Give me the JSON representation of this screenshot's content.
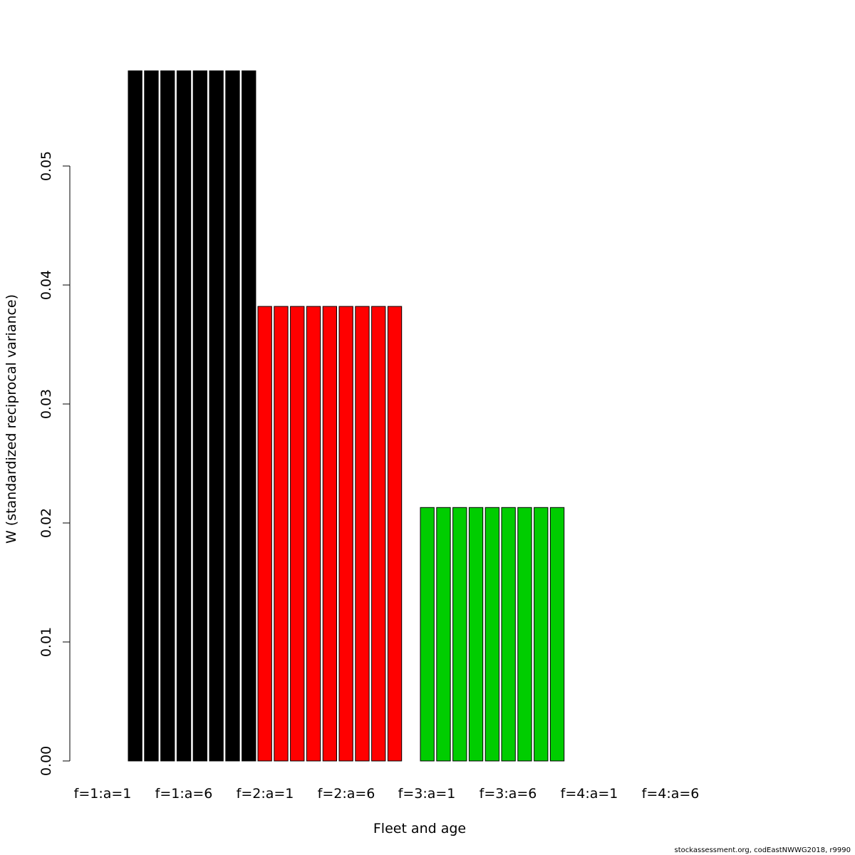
{
  "chart_data": {
    "type": "bar",
    "title": "",
    "xlabel": "Fleet and age",
    "ylabel": "W (standardized reciprocal variance)",
    "ylim": [
      0,
      0.058
    ],
    "yticks": [
      "0.00",
      "0.01",
      "0.02",
      "0.03",
      "0.04",
      "0.05"
    ],
    "x_tick_labels": [
      "f=1:a=1",
      "f=1:a=6",
      "f=2:a=1",
      "f=2:a=6",
      "f=3:a=1",
      "f=3:a=6",
      "f=4:a=1",
      "f=4:a=6"
    ],
    "grid": false,
    "legend": "none",
    "groups": [
      {
        "fleet": 1,
        "color": "#000000",
        "values": [
          0.058,
          0.058,
          0.058,
          0.058,
          0.058,
          0.058,
          0.058,
          0.058
        ]
      },
      {
        "fleet": 2,
        "color": "#ff0000",
        "values": [
          0.0382,
          0.0382,
          0.0382,
          0.0382,
          0.0382,
          0.0382,
          0.0382,
          0.0382,
          0.0382
        ]
      },
      {
        "fleet": 3,
        "color": "#00cd00",
        "values": [
          0.0213,
          0.0213,
          0.0213,
          0.0213,
          0.0213,
          0.0213,
          0.0213,
          0.0213,
          0.0213
        ]
      }
    ]
  },
  "footer": "stockassessment.org, codEastNWWG2018, r9990"
}
